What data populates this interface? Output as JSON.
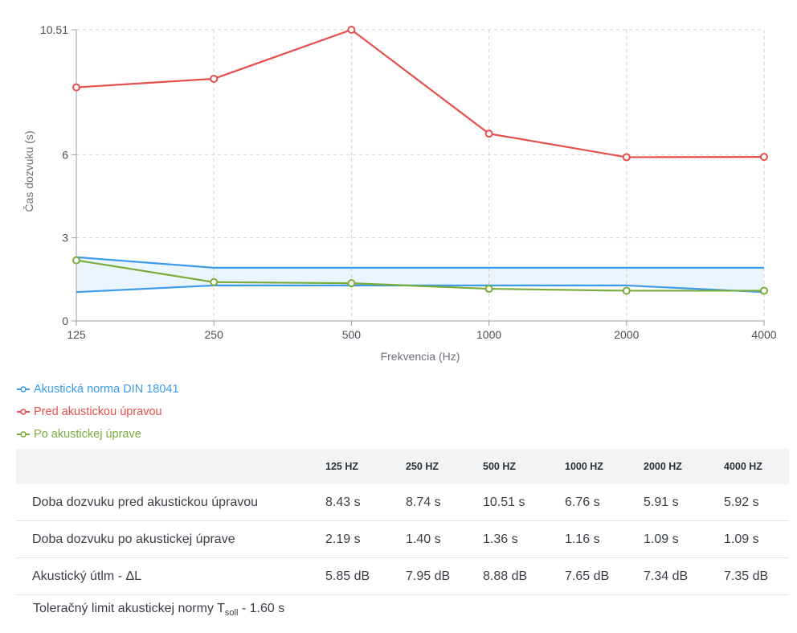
{
  "chart_data": {
    "type": "line",
    "x_categories": [
      "125",
      "250",
      "500",
      "1000",
      "2000",
      "4000"
    ],
    "y_ticks": [
      "0",
      "3",
      "6",
      "10.51"
    ],
    "y_tick_values": [
      0,
      3,
      6,
      10.51
    ],
    "ylim": [
      0,
      10.51
    ],
    "ylabel": "Čas dozvuku (s)",
    "xlabel": "Frekvencia (Hz)",
    "grid": true,
    "legend_position": "bottom-left",
    "series": [
      {
        "name": "Akustická norma DIN 18041",
        "color": "#3d9be9",
        "upper": [
          2.3,
          1.92,
          1.92,
          1.92,
          1.92,
          1.92
        ],
        "lower": [
          1.04,
          1.28,
          1.28,
          1.28,
          1.28,
          1.04
        ]
      },
      {
        "name": "Pred akustickou úpravou",
        "color": "#e5504d",
        "values": [
          8.43,
          8.74,
          10.51,
          6.76,
          5.91,
          5.92
        ]
      },
      {
        "name": "Po akustickej úprave",
        "color": "#7aac3c",
        "values": [
          2.19,
          1.4,
          1.36,
          1.16,
          1.09,
          1.09
        ]
      }
    ]
  },
  "table": {
    "headers": [
      "",
      "125 HZ",
      "250 HZ",
      "500 HZ",
      "1000 HZ",
      "2000 HZ",
      "4000 HZ"
    ],
    "rows": [
      {
        "label": "Doba dozvuku pred akustickou úpravou",
        "cells": [
          "8.43 s",
          "8.74 s",
          "10.51 s",
          "6.76 s",
          "5.91 s",
          "5.92 s"
        ]
      },
      {
        "label": "Doba dozvuku po akustickej úprave",
        "cells": [
          "2.19 s",
          "1.40 s",
          "1.36 s",
          "1.16 s",
          "1.09 s",
          "1.09 s"
        ]
      },
      {
        "label": "Akustický útlm - ΔL",
        "cells": [
          "5.85 dB",
          "7.95 dB",
          "8.88 dB",
          "7.65 dB",
          "7.34 dB",
          "7.35 dB"
        ]
      }
    ]
  },
  "note": {
    "prefix": "Toleračný limit akustickej normy T",
    "sub": "soll",
    "suffix": " - 1.60 s"
  }
}
